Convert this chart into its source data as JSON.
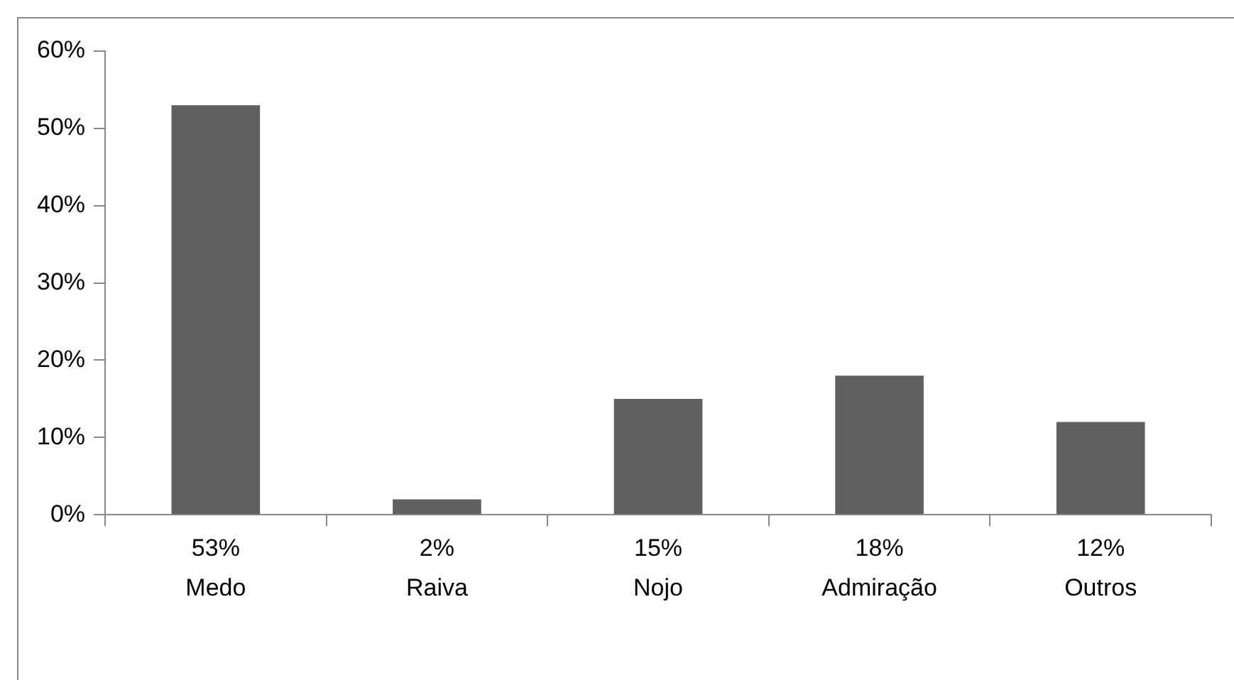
{
  "chart_data": {
    "type": "bar",
    "categories": [
      "Medo",
      "Raiva",
      "Nojo",
      "Admiração",
      "Outros"
    ],
    "values": [
      53,
      2,
      15,
      18,
      12
    ],
    "color": "#606060",
    "value_labels": [
      "53%",
      "2%",
      "15%",
      "18%",
      "12%"
    ],
    "ylim": [
      0,
      60
    ],
    "yticks": [
      {
        "value": 0,
        "label": "0%"
      },
      {
        "value": 10,
        "label": "10%"
      },
      {
        "value": 20,
        "label": "20%"
      },
      {
        "value": 30,
        "label": "30%"
      },
      {
        "value": 40,
        "label": "40%"
      },
      {
        "value": 50,
        "label": "50%"
      },
      {
        "value": 60,
        "label": "60%"
      }
    ],
    "grid": false,
    "legend": false
  }
}
